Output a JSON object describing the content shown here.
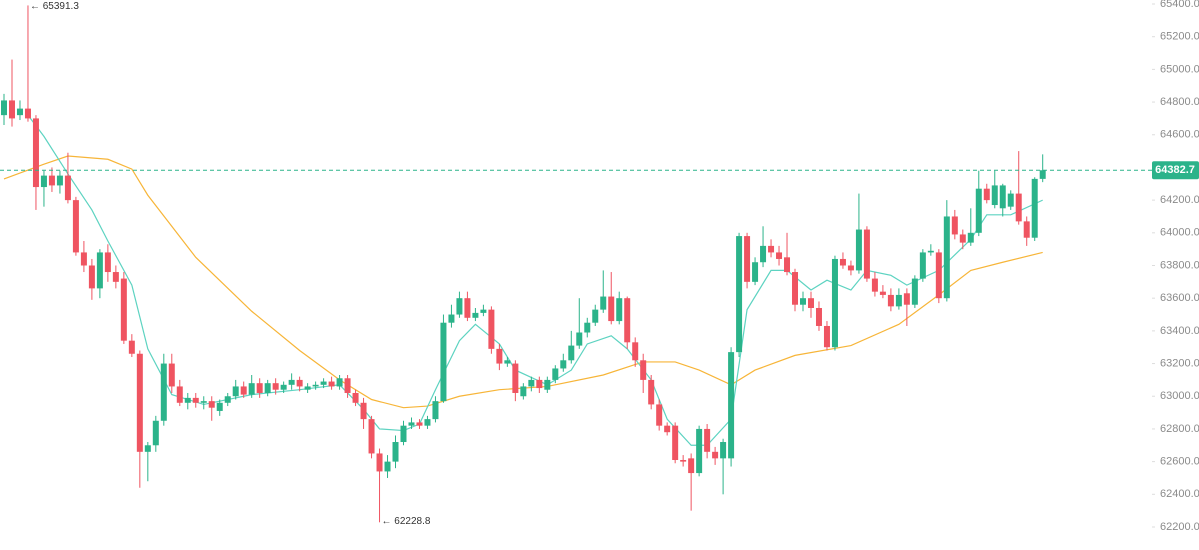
{
  "chart_data": {
    "type": "candlestick",
    "up_color": "#2bb38a",
    "down_color": "#ef5461",
    "ylim": [
      62200,
      65400
    ],
    "yticks": [
      {
        "value": 62200,
        "label": "62200.0"
      },
      {
        "value": 62400,
        "label": "62400.0"
      },
      {
        "value": 62600,
        "label": "62600.0"
      },
      {
        "value": 62800,
        "label": "62800.0"
      },
      {
        "value": 63000,
        "label": "63000.0"
      },
      {
        "value": 63200,
        "label": "63200.0"
      },
      {
        "value": 63400,
        "label": "63400.0"
      },
      {
        "value": 63600,
        "label": "63600.0"
      },
      {
        "value": 63800,
        "label": "63800.0"
      },
      {
        "value": 64000,
        "label": "64000.0"
      },
      {
        "value": 64200,
        "label": "64200.0"
      },
      {
        "value": 64400,
        "label": "64400.0"
      },
      {
        "value": 64600,
        "label": "64600.0"
      },
      {
        "value": 64800,
        "label": "64800.0"
      },
      {
        "value": 65000,
        "label": "65000.0"
      },
      {
        "value": 65200,
        "label": "65200.0"
      },
      {
        "value": 65400,
        "label": "65400.0"
      }
    ],
    "max_label": "← 65391.3",
    "min_label": "← 62228.8",
    "ohlc": [
      [
        64720,
        64850,
        64660,
        64810
      ],
      [
        64810,
        65060,
        64650,
        64700
      ],
      [
        64720,
        64810,
        64690,
        64760
      ],
      [
        64760,
        65391.3,
        64680,
        64700
      ],
      [
        64700,
        64720,
        64140,
        64280
      ],
      [
        64280,
        64380,
        64160,
        64350
      ],
      [
        64350,
        64400,
        64250,
        64290
      ],
      [
        64290,
        64380,
        64240,
        64350
      ],
      [
        64350,
        64490,
        64180,
        64200
      ],
      [
        64200,
        64220,
        63860,
        63880
      ],
      [
        63880,
        63950,
        63760,
        63800
      ],
      [
        63800,
        63840,
        63590,
        63660
      ],
      [
        63660,
        63900,
        63600,
        63880
      ],
      [
        63880,
        63930,
        63700,
        63760
      ],
      [
        63760,
        63800,
        63660,
        63700
      ],
      [
        63720,
        63760,
        63320,
        63340
      ],
      [
        63340,
        63380,
        63240,
        63260
      ],
      [
        63260,
        63280,
        62440,
        62660
      ],
      [
        62660,
        62720,
        62480,
        62700
      ],
      [
        62700,
        62880,
        62660,
        62850
      ],
      [
        62850,
        63260,
        62820,
        63200
      ],
      [
        63200,
        63260,
        63020,
        63060
      ],
      [
        63060,
        63100,
        62940,
        62960
      ],
      [
        62960,
        63020,
        62920,
        62990
      ],
      [
        62990,
        63020,
        62930,
        62960
      ],
      [
        62960,
        63000,
        62920,
        62970
      ],
      [
        62970,
        63000,
        62850,
        62930
      ],
      [
        62910,
        62980,
        62880,
        62960
      ],
      [
        62960,
        63020,
        62940,
        63000
      ],
      [
        63000,
        63100,
        62980,
        63060
      ],
      [
        63060,
        63090,
        62990,
        63010
      ],
      [
        63010,
        63130,
        62990,
        63080
      ],
      [
        63080,
        63110,
        62990,
        63020
      ],
      [
        63020,
        63100,
        63000,
        63080
      ],
      [
        63080,
        63110,
        63010,
        63040
      ],
      [
        63040,
        63090,
        63020,
        63070
      ],
      [
        63070,
        63140,
        63040,
        63100
      ],
      [
        63100,
        63120,
        63030,
        63060
      ],
      [
        63040,
        63080,
        63020,
        63060
      ],
      [
        63060,
        63090,
        63040,
        63070
      ],
      [
        63070,
        63110,
        63050,
        63090
      ],
      [
        63090,
        63120,
        63040,
        63060
      ],
      [
        63060,
        63130,
        63040,
        63110
      ],
      [
        63110,
        63130,
        62990,
        63020
      ],
      [
        63020,
        63040,
        62940,
        62960
      ],
      [
        62960,
        62990,
        62800,
        62860
      ],
      [
        62860,
        62880,
        62620,
        62650
      ],
      [
        62650,
        62680,
        62228.8,
        62540
      ],
      [
        62540,
        62640,
        62500,
        62600
      ],
      [
        62600,
        62760,
        62560,
        62720
      ],
      [
        62720,
        62850,
        62700,
        62820
      ],
      [
        62820,
        62870,
        62800,
        62840
      ],
      [
        62840,
        62860,
        62800,
        62820
      ],
      [
        62820,
        62880,
        62800,
        62860
      ],
      [
        62860,
        63000,
        62840,
        62970
      ],
      [
        62970,
        63500,
        62960,
        63450
      ],
      [
        63450,
        63560,
        63420,
        63500
      ],
      [
        63500,
        63640,
        63480,
        63600
      ],
      [
        63600,
        63640,
        63460,
        63480
      ],
      [
        63480,
        63540,
        63460,
        63510
      ],
      [
        63510,
        63560,
        63490,
        63530
      ],
      [
        63530,
        63550,
        63260,
        63290
      ],
      [
        63290,
        63320,
        63160,
        63200
      ],
      [
        63200,
        63240,
        63180,
        63220
      ],
      [
        63200,
        63220,
        62970,
        63020
      ],
      [
        63000,
        63080,
        62980,
        63060
      ],
      [
        63060,
        63120,
        63030,
        63100
      ],
      [
        63100,
        63120,
        63020,
        63050
      ],
      [
        63040,
        63120,
        63020,
        63100
      ],
      [
        63100,
        63190,
        63080,
        63170
      ],
      [
        63170,
        63260,
        63150,
        63220
      ],
      [
        63220,
        63400,
        63200,
        63310
      ],
      [
        63310,
        63600,
        63290,
        63390
      ],
      [
        63390,
        63480,
        63360,
        63450
      ],
      [
        63450,
        63560,
        63430,
        63530
      ],
      [
        63530,
        63770,
        63510,
        63610
      ],
      [
        63610,
        63760,
        63440,
        63460
      ],
      [
        63460,
        63640,
        63440,
        63600
      ],
      [
        63600,
        63610,
        63290,
        63330
      ],
      [
        63330,
        63360,
        63180,
        63220
      ],
      [
        63220,
        63260,
        63020,
        63100
      ],
      [
        63100,
        63130,
        62920,
        62950
      ],
      [
        62950,
        62980,
        62790,
        62820
      ],
      [
        62820,
        62840,
        62760,
        62780
      ],
      [
        62820,
        62840,
        62590,
        62610
      ],
      [
        62610,
        62640,
        62570,
        62600
      ],
      [
        62620,
        62650,
        62300,
        62530
      ],
      [
        62530,
        62820,
        62510,
        62800
      ],
      [
        62800,
        62830,
        62620,
        62660
      ],
      [
        62660,
        62690,
        62580,
        62620
      ],
      [
        62620,
        62740,
        62400,
        62720
      ],
      [
        62620,
        63300,
        62570,
        63270
      ],
      [
        63270,
        64000,
        63240,
        63980
      ],
      [
        63980,
        64000,
        63660,
        63700
      ],
      [
        63700,
        63850,
        63680,
        63820
      ],
      [
        63820,
        64040,
        63790,
        63920
      ],
      [
        63920,
        63960,
        63850,
        63880
      ],
      [
        63880,
        63920,
        63800,
        63840
      ],
      [
        63850,
        64000,
        63740,
        63760
      ],
      [
        63760,
        63780,
        63520,
        63560
      ],
      [
        63560,
        63640,
        63520,
        63600
      ],
      [
        63600,
        63640,
        63480,
        63540
      ],
      [
        63540,
        63580,
        63400,
        63430
      ],
      [
        63430,
        63460,
        63280,
        63300
      ],
      [
        63300,
        63860,
        63280,
        63840
      ],
      [
        63840,
        63880,
        63780,
        63800
      ],
      [
        63800,
        63830,
        63740,
        63770
      ],
      [
        63770,
        64240,
        63750,
        64020
      ],
      [
        64020,
        64040,
        63700,
        63720
      ],
      [
        63720,
        63760,
        63610,
        63640
      ],
      [
        63640,
        63680,
        63600,
        63620
      ],
      [
        63620,
        63660,
        63520,
        63550
      ],
      [
        63550,
        63660,
        63530,
        63620
      ],
      [
        63630,
        63660,
        63430,
        63560
      ],
      [
        63560,
        63740,
        63540,
        63720
      ],
      [
        63720,
        63900,
        63700,
        63880
      ],
      [
        63880,
        63930,
        63860,
        63890
      ],
      [
        63880,
        63900,
        63570,
        63600
      ],
      [
        63600,
        64200,
        63580,
        64100
      ],
      [
        64100,
        64140,
        63960,
        63990
      ],
      [
        63990,
        64020,
        63900,
        63940
      ],
      [
        63940,
        64150,
        63920,
        64000
      ],
      [
        64000,
        64380,
        63980,
        64270
      ],
      [
        64270,
        64300,
        64180,
        64200
      ],
      [
        64170,
        64380,
        64150,
        64290
      ],
      [
        64150,
        64300,
        64100,
        64290
      ],
      [
        64160,
        64260,
        64140,
        64240
      ],
      [
        64240,
        64500,
        64050,
        64070
      ],
      [
        64070,
        64100,
        63920,
        63970
      ],
      [
        63970,
        64340,
        63950,
        64330
      ],
      [
        64330,
        64480,
        64310,
        64382.7
      ]
    ],
    "lines": [
      {
        "color": "#f7b538",
        "x": [
          0,
          5,
          8,
          13,
          16,
          18,
          24,
          31,
          37,
          42,
          46,
          50,
          53,
          57,
          62,
          68,
          75,
          80,
          84,
          87,
          91,
          94,
          99,
          106,
          112,
          117,
          121,
          125,
          130
        ],
        "values": [
          64330,
          64420,
          64470,
          64450,
          64390,
          64230,
          63850,
          63520,
          63280,
          63100,
          62980,
          62930,
          62940,
          63000,
          63040,
          63060,
          63130,
          63210,
          63210,
          63160,
          63070,
          63160,
          63250,
          63310,
          63440,
          63620,
          63770,
          63820,
          63880
        ]
      },
      {
        "color": "#5dd3c1",
        "x": [
          3,
          5,
          8,
          11,
          13,
          16,
          18,
          21,
          25,
          31,
          37,
          42,
          45,
          47,
          50,
          52,
          54,
          57,
          59,
          62,
          64,
          68,
          71,
          73,
          76,
          78,
          81,
          83,
          86,
          88,
          91,
          93,
          96,
          98,
          101,
          103,
          106,
          108,
          111,
          113,
          117,
          121,
          123,
          126,
          130
        ],
        "values": [
          64720,
          64590,
          64360,
          64140,
          63950,
          63680,
          63290,
          63010,
          62950,
          63010,
          63040,
          63070,
          62920,
          62800,
          62790,
          62830,
          63040,
          63340,
          63440,
          63320,
          63160,
          63070,
          63160,
          63320,
          63370,
          63290,
          63100,
          62860,
          62700,
          62700,
          62860,
          63530,
          63770,
          63770,
          63650,
          63710,
          63650,
          63770,
          63740,
          63680,
          63770,
          63960,
          64110,
          64110,
          64200
        ]
      }
    ]
  }
}
